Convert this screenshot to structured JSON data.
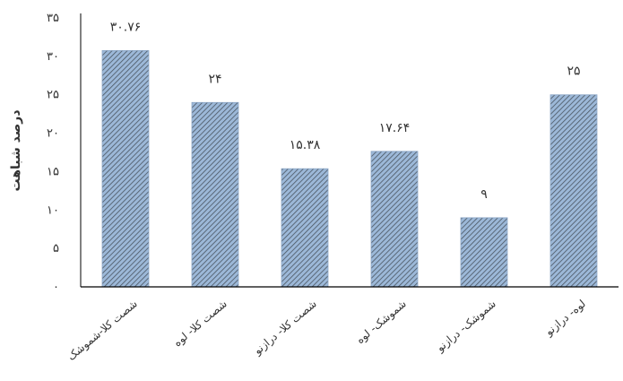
{
  "chart_data": {
    "type": "bar",
    "title": "",
    "xlabel": "",
    "ylabel": "درصد شباهت",
    "ylim": [
      0,
      35
    ],
    "yticks": [
      0,
      5,
      10,
      15,
      20,
      25,
      30,
      35
    ],
    "ytick_labels": [
      "۰",
      "۵",
      "۱۰",
      "۱۵",
      "۲۰",
      "۲۵",
      "۳۰",
      "۳۵"
    ],
    "grid": false,
    "legend": "none",
    "categories": [
      "شصت کلا-شموشک",
      "شصت کلا- لوه",
      "شصت کلا- درازنو",
      "شموشک- لوه",
      "شموشک- درازنو",
      "لوه- درازنو"
    ],
    "values": [
      30.76,
      24,
      15.38,
      17.64,
      9,
      25
    ],
    "value_labels": [
      "۳۰.۷۶",
      "۲۴",
      "۱۵.۳۸",
      "۱۷.۶۴",
      "۹",
      "۲۵"
    ],
    "bar_fill_color": "#9cb8d8",
    "bar_hatch_color": "#4a5561"
  }
}
